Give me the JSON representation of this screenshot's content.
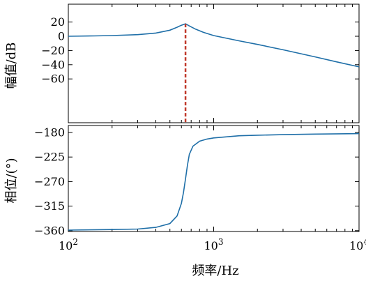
{
  "chart_data": [
    {
      "type": "line",
      "panel": "magnitude",
      "ylabel": "幅值/dB",
      "xscale": "log",
      "xlim": [
        100,
        10000
      ],
      "ylim": [
        -60,
        20
      ],
      "yticks": [
        20,
        0,
        -20,
        -40,
        -60
      ],
      "ytick_labels": [
        "20",
        "0",
        "−20",
        "−40",
        "−60"
      ],
      "series_color": "#1f6fa8",
      "marker_color": "#c0392b",
      "resonance_frequency_hz": 640,
      "x": [
        100,
        150,
        200,
        300,
        400,
        500,
        550,
        600,
        640,
        680,
        750,
        850,
        1000,
        1500,
        2000,
        3000,
        5000,
        7000,
        10000
      ],
      "y": [
        0,
        0.5,
        1.0,
        2.3,
        4.5,
        8.5,
        12,
        15.5,
        17.5,
        14.5,
        10,
        5.5,
        1,
        -6.5,
        -11.5,
        -19,
        -29,
        -36,
        -43
      ]
    },
    {
      "type": "line",
      "panel": "phase",
      "xlabel": "频率/Hz",
      "ylabel": "相位/(°)",
      "xscale": "log",
      "xlim": [
        100,
        10000
      ],
      "ylim": [
        -362,
        -180
      ],
      "yticks": [
        -180,
        -225,
        -270,
        -315,
        -360
      ],
      "ytick_labels": [
        "−180",
        "−225",
        "−270",
        "−315",
        "−360"
      ],
      "xtick_labels": [
        {
          "base": "10",
          "exp": "2"
        },
        {
          "base": "10",
          "exp": "3"
        },
        {
          "base": "10",
          "exp": "4"
        }
      ],
      "series_color": "#1f6fa8",
      "x": [
        100,
        200,
        300,
        400,
        500,
        560,
        600,
        620,
        640,
        660,
        680,
        720,
        800,
        900,
        1000,
        1500,
        2000,
        3000,
        5000,
        10000
      ],
      "y": [
        -359,
        -358,
        -357,
        -354,
        -347,
        -333,
        -310,
        -290,
        -265,
        -240,
        -220,
        -205,
        -196,
        -192,
        -190,
        -186,
        -185,
        -184,
        -183,
        -182
      ]
    }
  ]
}
